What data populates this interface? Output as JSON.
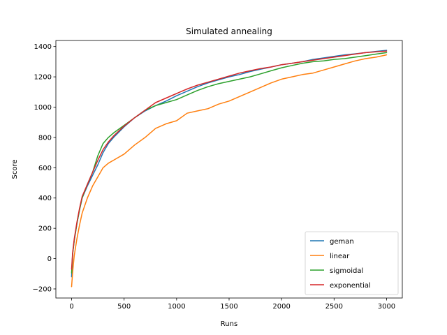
{
  "chart_data": {
    "type": "line",
    "title": "Simulated annealing",
    "xlabel": "Runs",
    "ylabel": "Score",
    "xlim": [
      -150,
      3150
    ],
    "ylim": [
      -260,
      1440
    ],
    "xticks": [
      0,
      500,
      1000,
      1500,
      2000,
      2500,
      3000
    ],
    "yticks": [
      -200,
      0,
      200,
      400,
      600,
      800,
      1000,
      1200,
      1400
    ],
    "grid": false,
    "legend": "lower-right",
    "x": [
      0,
      10,
      25,
      50,
      75,
      100,
      150,
      200,
      250,
      300,
      350,
      400,
      500,
      600,
      700,
      800,
      900,
      1000,
      1100,
      1200,
      1300,
      1400,
      1500,
      1600,
      1700,
      1800,
      1900,
      2000,
      2100,
      2200,
      2300,
      2400,
      2500,
      2600,
      2700,
      2800,
      2900,
      3000
    ],
    "series": [
      {
        "name": "geman",
        "color": "#1f77b4",
        "values": [
          -120,
          30,
          120,
          230,
          320,
          400,
          480,
          550,
          620,
          700,
          760,
          800,
          870,
          930,
          975,
          1010,
          1040,
          1075,
          1105,
          1135,
          1160,
          1180,
          1200,
          1215,
          1235,
          1250,
          1265,
          1280,
          1290,
          1300,
          1315,
          1325,
          1335,
          1345,
          1352,
          1360,
          1368,
          1375
        ]
      },
      {
        "name": "linear",
        "color": "#ff7f0e",
        "values": [
          -185,
          -90,
          20,
          130,
          220,
          300,
          400,
          480,
          540,
          600,
          630,
          650,
          690,
          750,
          800,
          860,
          890,
          910,
          960,
          975,
          990,
          1020,
          1040,
          1070,
          1100,
          1130,
          1160,
          1185,
          1200,
          1215,
          1225,
          1245,
          1265,
          1285,
          1305,
          1320,
          1330,
          1345
        ]
      },
      {
        "name": "sigmoidal",
        "color": "#2ca02c",
        "values": [
          -95,
          30,
          120,
          230,
          320,
          400,
          490,
          570,
          680,
          760,
          800,
          830,
          880,
          930,
          980,
          1010,
          1030,
          1050,
          1080,
          1110,
          1135,
          1155,
          1170,
          1185,
          1200,
          1220,
          1240,
          1260,
          1275,
          1290,
          1300,
          1305,
          1315,
          1320,
          1330,
          1340,
          1350,
          1360
        ]
      },
      {
        "name": "exponential",
        "color": "#d62728",
        "values": [
          -70,
          40,
          130,
          240,
          330,
          410,
          490,
          570,
          650,
          720,
          770,
          810,
          875,
          930,
          980,
          1030,
          1060,
          1090,
          1120,
          1145,
          1165,
          1185,
          1205,
          1225,
          1240,
          1255,
          1265,
          1280,
          1290,
          1300,
          1310,
          1320,
          1330,
          1340,
          1350,
          1360,
          1365,
          1370
        ]
      }
    ]
  }
}
